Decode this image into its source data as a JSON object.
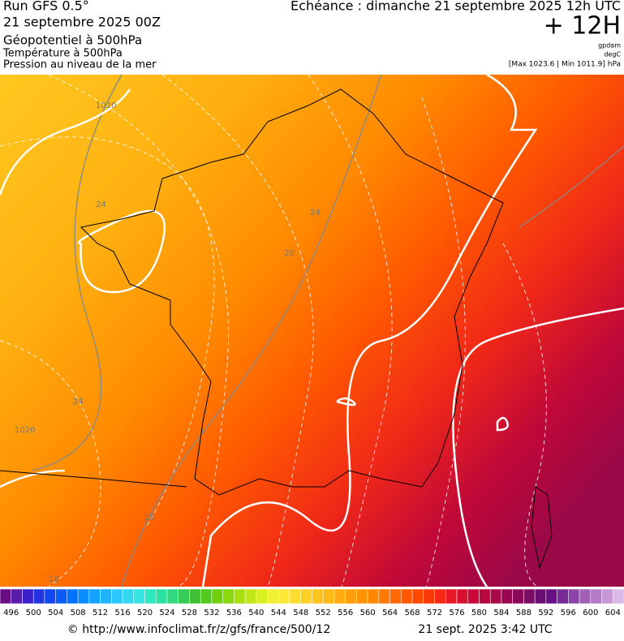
{
  "header": {
    "run": "Run GFS 0.5°",
    "date": "21 septembre 2025 00Z",
    "title": "Géopotentiel à 500hPa",
    "subtitle1": "Température à 500hPa",
    "subtitle2": "Pression au niveau de la mer",
    "forecast": "Echéance : dimanche 21 septembre 2025 12h UTC",
    "lead": "+ 12H",
    "unit1": "gpdam",
    "unit2": "degC",
    "unit3": "[Max 1023.6 | Min 1011.9] hPa"
  },
  "map": {
    "contour_labels": [
      "1020",
      "24",
      "24",
      "20",
      "24",
      "1020",
      "16",
      "16"
    ]
  },
  "colorbar": {
    "labels": [
      496,
      500,
      504,
      508,
      512,
      516,
      520,
      524,
      528,
      532,
      536,
      540,
      544,
      548,
      552,
      556,
      560,
      564,
      568,
      572,
      576,
      580,
      584,
      588,
      592,
      596,
      600,
      604
    ],
    "colors": [
      "#6a0d83",
      "#5a1bab",
      "#3b1fc8",
      "#2233e0",
      "#1146f0",
      "#0a5cf5",
      "#0073ff",
      "#0a8bff",
      "#16a0ff",
      "#20b4ff",
      "#2ac8ff",
      "#33d8f0",
      "#35e6e0",
      "#30e8c0",
      "#2ee0a0",
      "#30d880",
      "#35cc55",
      "#40c030",
      "#55c820",
      "#70d010",
      "#8ad810",
      "#a6e010",
      "#c0e818",
      "#d8f020",
      "#eef030",
      "#ffe838",
      "#ffdc30",
      "#ffd028",
      "#ffc420",
      "#ffb818",
      "#ffac10",
      "#ffa00a",
      "#ff9405",
      "#ff8800",
      "#ff7800",
      "#ff6800",
      "#ff5800",
      "#ff4800",
      "#ff3800",
      "#f82818",
      "#e81828",
      "#d81030",
      "#c80838",
      "#b80840",
      "#a80848",
      "#980850",
      "#880a5a",
      "#7a0c66",
      "#6c0e72",
      "#680f86",
      "#7a2a96",
      "#8c44a6",
      "#a060b6",
      "#b47cc6",
      "#c898d6",
      "#dcb8e6"
    ]
  },
  "footer": {
    "source": "© http://www.infoclimat.fr/z/gfs/france/500/12",
    "timestamp": "21 sept. 2025  3:42 UTC"
  }
}
